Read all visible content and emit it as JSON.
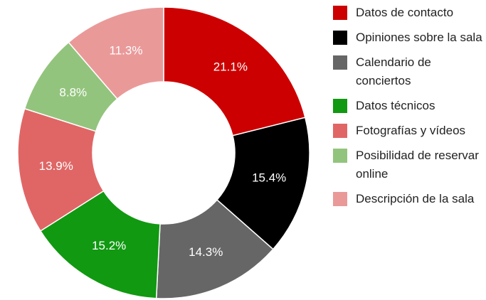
{
  "chart_data": {
    "type": "pie",
    "categories": [
      "Datos de contacto",
      "Opiniones sobre la sala",
      "Calendario de conciertos",
      "Datos técnicos",
      "Fotografías y vídeos",
      "Posibilidad de reservar online",
      "Descripción de la sala"
    ],
    "values": [
      21.1,
      15.4,
      14.3,
      15.2,
      13.9,
      8.8,
      11.3
    ],
    "value_labels": [
      "21.1%",
      "15.4%",
      "14.3%",
      "15.2%",
      "13.9%",
      "8.8%",
      "11.3%"
    ],
    "colors": [
      "#cc0000",
      "#000000",
      "#666666",
      "#119911",
      "#e06666",
      "#93c47d",
      "#ea9999"
    ],
    "legend": "right"
  }
}
